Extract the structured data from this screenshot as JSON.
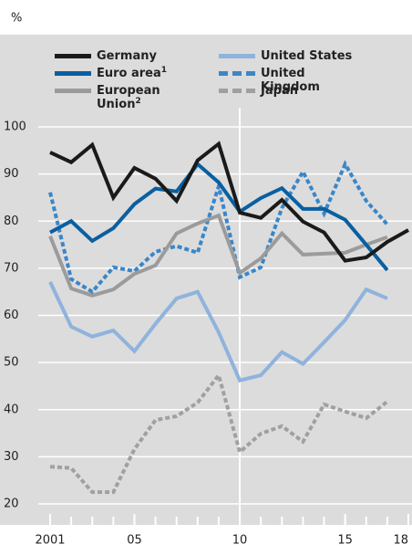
{
  "chart_data": {
    "type": "line",
    "y_label": "%",
    "x": [
      2001,
      2002,
      2003,
      2004,
      2005,
      2006,
      2007,
      2008,
      2009,
      2010,
      2011,
      2012,
      2013,
      2014,
      2015,
      2016,
      2017,
      2018
    ],
    "series": [
      {
        "name": "Germany",
        "color": "#1a1a1a",
        "dash": false,
        "values": [
          94.6,
          92.5,
          96.2,
          85,
          91.3,
          89,
          84.3,
          92.9,
          96.4,
          81.8,
          80.7,
          84.5,
          79.9,
          77.6,
          71.6,
          72.3,
          75.6,
          78.1
        ]
      },
      {
        "name": "United States",
        "color": "#8fb3dc",
        "dash": false,
        "values": [
          67.1,
          57.6,
          55.5,
          56.8,
          52.4,
          58.2,
          63.6,
          65,
          56.4,
          46.2,
          47.3,
          52.2,
          49.7,
          54.3,
          59,
          65.5,
          63.6,
          null
        ]
      },
      {
        "name": "Euro area",
        "note": "1",
        "color": "#0a5fa0",
        "dash": false,
        "values": [
          77.6,
          80,
          75.8,
          78.5,
          83.6,
          86.9,
          86.3,
          92.1,
          88.2,
          82,
          84.9,
          87,
          82.6,
          82.6,
          80.3,
          75,
          69.6,
          null
        ]
      },
      {
        "name": "United Kingdom",
        "color": "#3a86c8",
        "dash": true,
        "values": [
          86.1,
          67.7,
          65,
          70.2,
          69.4,
          73.5,
          74.7,
          73.3,
          87.4,
          68.1,
          70.2,
          82.8,
          90.5,
          81.6,
          92.1,
          84.3,
          79.3,
          null
        ]
      },
      {
        "name": "European Union",
        "note": "2",
        "color": "#9b9b9b",
        "dash": false,
        "values": [
          76.8,
          65.7,
          64.2,
          65.5,
          68.8,
          70.6,
          77.4,
          79.5,
          81.2,
          69,
          72.1,
          77.4,
          72.9,
          73.1,
          73.3,
          75,
          76.6,
          null
        ]
      },
      {
        "name": "Japan",
        "color": "#a0a0a0",
        "dash": true,
        "values": [
          27.9,
          27.6,
          22.5,
          22.5,
          31.6,
          37.8,
          38.6,
          41.5,
          47.3,
          31,
          34.9,
          36.5,
          33.2,
          41.1,
          39.6,
          38.2,
          41.7,
          null
        ]
      }
    ],
    "xlim": [
      2001,
      2018
    ],
    "xticks": [
      {
        "value": 2001,
        "label": "2001"
      },
      {
        "value": 2005,
        "label": "05"
      },
      {
        "value": 2010,
        "label": "10"
      },
      {
        "value": 2015,
        "label": "15"
      },
      {
        "value": 2018,
        "label": "18"
      }
    ],
    "xticks_minor": [
      2001,
      2002,
      2003,
      2004,
      2005,
      2006,
      2007,
      2008,
      2009,
      2010,
      2011,
      2012,
      2013,
      2014,
      2015,
      2016,
      2017,
      2018
    ],
    "vline": 2010,
    "ylim": [
      20,
      100
    ],
    "yticks": [
      20,
      30,
      40,
      50,
      60,
      70,
      80,
      90,
      100
    ],
    "grid": true
  }
}
